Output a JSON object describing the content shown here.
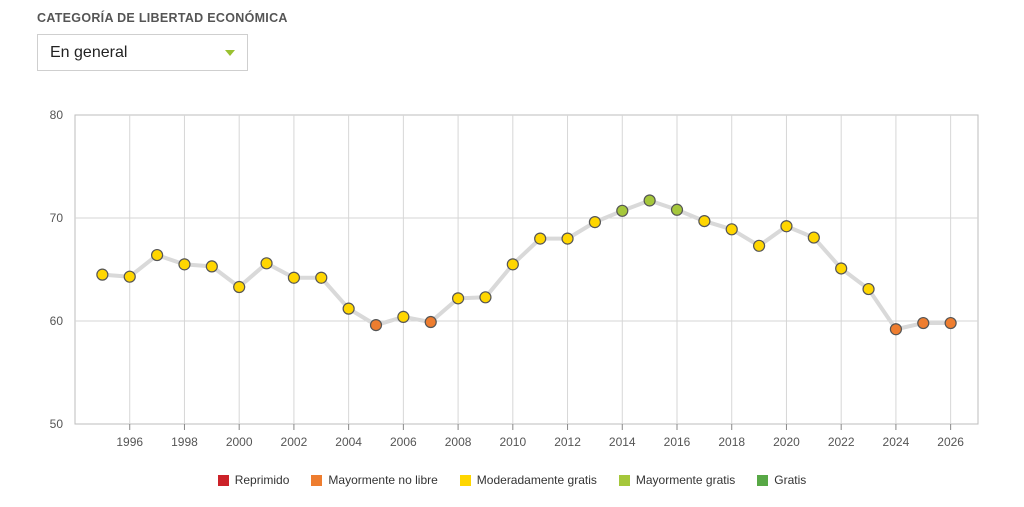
{
  "header": {
    "category_label": "CATEGORÍA DE LIBERTAD ECONÓMICA",
    "dropdown_value": "En general",
    "dropdown_arrow_icon": "caret-down-icon"
  },
  "chart_data": {
    "type": "line",
    "title": "",
    "xlabel": "",
    "ylabel": "",
    "xlim": [
      1994,
      2027
    ],
    "ylim": [
      50,
      80
    ],
    "yticks": [
      50,
      60,
      70,
      80
    ],
    "xticks": [
      1996,
      1998,
      2000,
      2002,
      2004,
      2006,
      2008,
      2010,
      2012,
      2014,
      2016,
      2018,
      2020,
      2022,
      2024,
      2026
    ],
    "grid": true,
    "legend_position": "bottom-center",
    "line_color": "#d9d9d9",
    "categories": [
      {
        "name": "Reprimido",
        "color": "#cc2229",
        "range": [
          0,
          50
        ]
      },
      {
        "name": "Mayormente no libre",
        "color": "#ee7d2f",
        "range": [
          50,
          60
        ]
      },
      {
        "name": "Moderadamente gratis",
        "color": "#ffd600",
        "range": [
          60,
          70
        ]
      },
      {
        "name": "Mayormente gratis",
        "color": "#a5c73b",
        "range": [
          70,
          80
        ]
      },
      {
        "name": "Gratis",
        "color": "#58a846",
        "range": [
          80,
          100
        ]
      }
    ],
    "series": [
      {
        "points": [
          {
            "x": 1995,
            "y": 64.5,
            "category": 2
          },
          {
            "x": 1996,
            "y": 64.3,
            "category": 2
          },
          {
            "x": 1997,
            "y": 66.4,
            "category": 2
          },
          {
            "x": 1998,
            "y": 65.5,
            "category": 2
          },
          {
            "x": 1999,
            "y": 65.3,
            "category": 2
          },
          {
            "x": 2000,
            "y": 63.3,
            "category": 2
          },
          {
            "x": 2001,
            "y": 65.6,
            "category": 2
          },
          {
            "x": 2002,
            "y": 64.2,
            "category": 2
          },
          {
            "x": 2003,
            "y": 64.2,
            "category": 2
          },
          {
            "x": 2004,
            "y": 61.2,
            "category": 2
          },
          {
            "x": 2005,
            "y": 59.6,
            "category": 1
          },
          {
            "x": 2006,
            "y": 60.4,
            "category": 2
          },
          {
            "x": 2007,
            "y": 59.9,
            "category": 1
          },
          {
            "x": 2008,
            "y": 62.2,
            "category": 2
          },
          {
            "x": 2009,
            "y": 62.3,
            "category": 2
          },
          {
            "x": 2010,
            "y": 65.5,
            "category": 2
          },
          {
            "x": 2011,
            "y": 68.0,
            "category": 2
          },
          {
            "x": 2012,
            "y": 68.0,
            "category": 2
          },
          {
            "x": 2013,
            "y": 69.6,
            "category": 2
          },
          {
            "x": 2014,
            "y": 70.7,
            "category": 3
          },
          {
            "x": 2015,
            "y": 71.7,
            "category": 3
          },
          {
            "x": 2016,
            "y": 70.8,
            "category": 3
          },
          {
            "x": 2017,
            "y": 69.7,
            "category": 2
          },
          {
            "x": 2018,
            "y": 68.9,
            "category": 2
          },
          {
            "x": 2019,
            "y": 67.3,
            "category": 2
          },
          {
            "x": 2020,
            "y": 69.2,
            "category": 2
          },
          {
            "x": 2021,
            "y": 68.1,
            "category": 2
          },
          {
            "x": 2022,
            "y": 65.1,
            "category": 2
          },
          {
            "x": 2023,
            "y": 63.1,
            "category": 2
          },
          {
            "x": 2024,
            "y": 59.2,
            "category": 1
          },
          {
            "x": 2025,
            "y": 59.8,
            "category": 1
          },
          {
            "x": 2026,
            "y": 59.8,
            "category": 1
          }
        ]
      }
    ]
  }
}
